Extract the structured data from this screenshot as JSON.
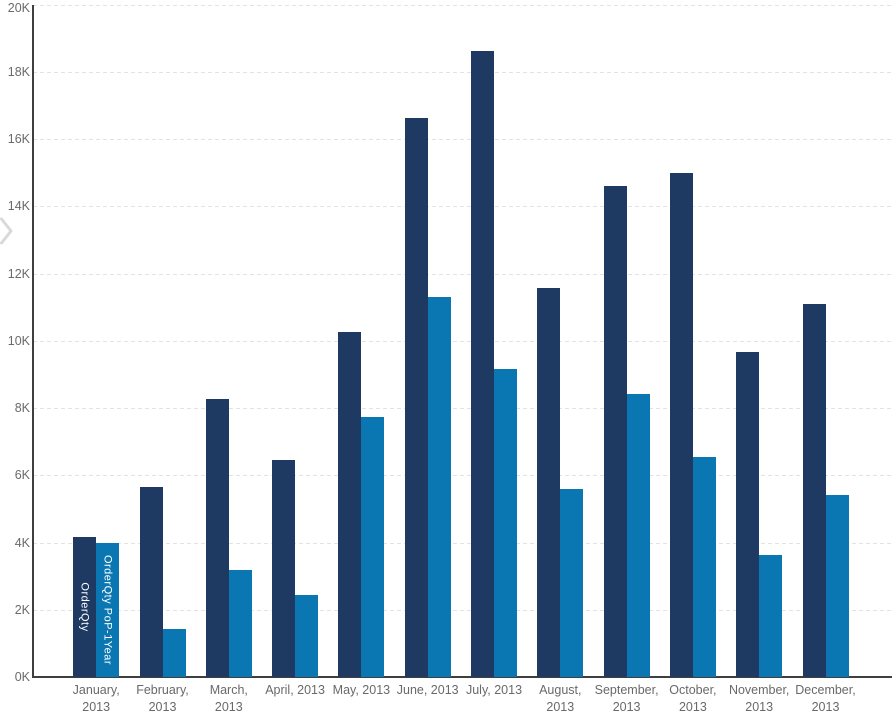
{
  "chart_data": {
    "type": "bar",
    "title": "",
    "xlabel": "",
    "ylabel": "",
    "categories": [
      "January, 2013",
      "February, 2013",
      "March, 2013",
      "April, 2013",
      "May, 2013",
      "June, 2013",
      "July, 2013",
      "August, 2013",
      "September, 2013",
      "October, 2013",
      "November, 2013",
      "December, 2013"
    ],
    "category_label_lines": [
      [
        "January,",
        "2013"
      ],
      [
        "February,",
        "2013"
      ],
      [
        "March,",
        "2013"
      ],
      [
        "April, 2013"
      ],
      [
        "May, 2013"
      ],
      [
        "June, 2013"
      ],
      [
        "July, 2013"
      ],
      [
        "August,",
        "2013"
      ],
      [
        "September,",
        "2013"
      ],
      [
        "October,",
        "2013"
      ],
      [
        "November,",
        "2013"
      ],
      [
        "December,",
        "2013"
      ]
    ],
    "series": [
      {
        "name": "OrderQty",
        "color": "#1e3a62",
        "values": [
          4150,
          5650,
          8270,
          6450,
          10250,
          16630,
          18630,
          11580,
          14600,
          15000,
          9670,
          11080
        ]
      },
      {
        "name": "OrderQty PoP-1Year",
        "color": "#0a77b2",
        "values": [
          3980,
          1420,
          3180,
          2430,
          7730,
          11310,
          9170,
          5580,
          8410,
          6550,
          3620,
          5410
        ]
      }
    ],
    "ylim": [
      0,
      20000
    ],
    "ytick_step": 2000,
    "ytick_labels": [
      "0K",
      "2K",
      "4K",
      "6K",
      "8K",
      "10K",
      "12K",
      "14K",
      "16K",
      "18K",
      "20K"
    ],
    "grid": "horizontal-dashed",
    "legend": "series names drawn as vertical labels inside first category bars",
    "first_category_bar_labels": [
      "OrderQty",
      "OrderQty PoP-1Year"
    ]
  },
  "colors": {
    "background": "#ffffff",
    "axis_line": "#3f3f3f",
    "gridline": "#e2e2e2",
    "tick_label": "#6a6a6a",
    "bar_dark": "#1e3a62",
    "bar_light": "#0a77b2",
    "chevron": "#d9d9d9"
  },
  "icons": {
    "page_nav": "chevron-right-icon"
  }
}
